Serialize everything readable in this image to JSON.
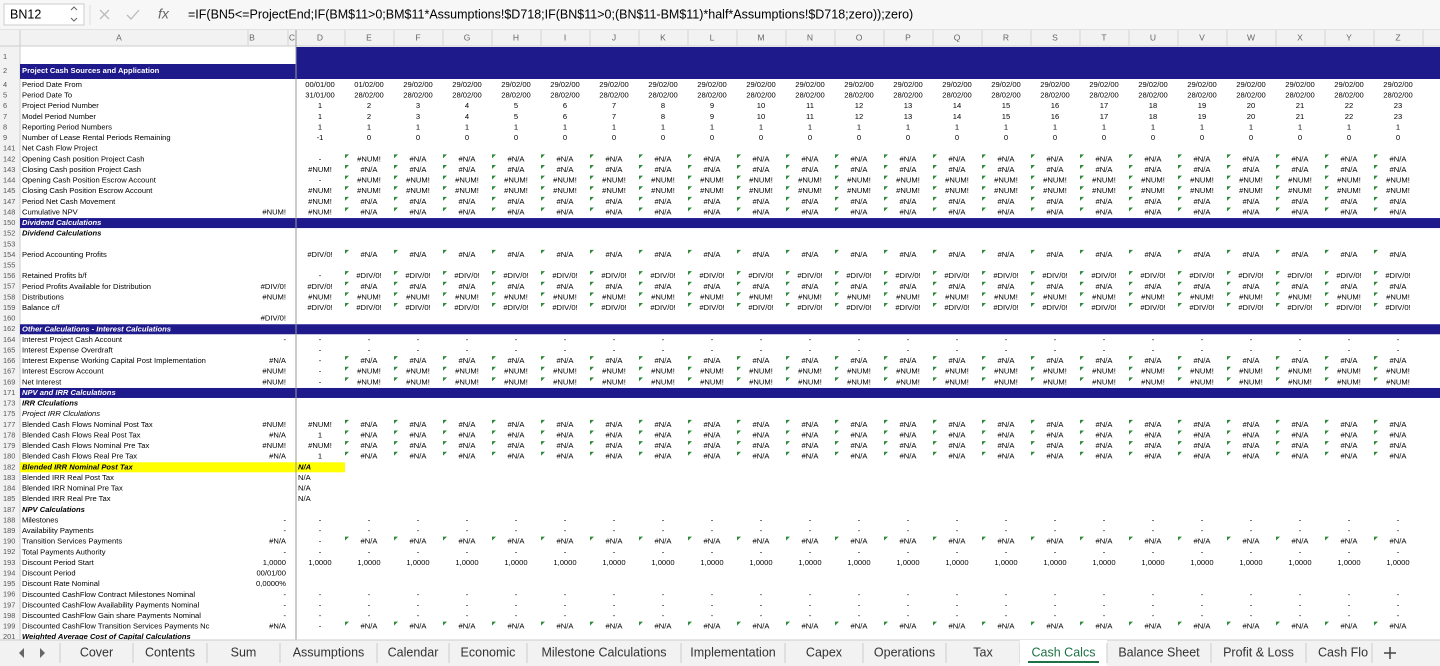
{
  "name_box": "BN12",
  "fx_label": "fx",
  "formula": "=IF(BN5<=ProjectEnd;IF(BM$11>0;BM$11*Assumptions!$D718;IF(BN$11>0;(BN$11-BM$11)*half*Assumptions!$D718;zero));zero)",
  "columns": [
    "A",
    "B",
    "C",
    "D",
    "E",
    "F",
    "G",
    "H",
    "I",
    "J",
    "K",
    "L",
    "M",
    "N",
    "O",
    "P",
    "Q",
    "R",
    "S",
    "T",
    "U",
    "V",
    "W",
    "X",
    "Y",
    "Z"
  ],
  "rows": [
    {
      "n": 1,
      "style": "banner"
    },
    {
      "n": 2,
      "style": "title",
      "label": "Project Cash Sources and Application"
    },
    {
      "n": 4,
      "label": "Period Date From",
      "cells": [
        "00/01/00",
        "01/02/00",
        "29/02/00",
        "29/02/00",
        "29/02/00",
        "29/02/00",
        "29/02/00",
        "29/02/00",
        "29/02/00",
        "29/02/00",
        "29/02/00",
        "29/02/00",
        "29/02/00",
        "29/02/00",
        "29/02/00",
        "29/02/00",
        "29/02/00",
        "29/02/00",
        "29/02/00",
        "29/02/00",
        "29/02/00",
        "29/02/00",
        "29/02/00"
      ]
    },
    {
      "n": 5,
      "label": "Period Date To",
      "cells": [
        "31/01/00",
        "28/02/00",
        "28/02/00",
        "28/02/00",
        "28/02/00",
        "28/02/00",
        "28/02/00",
        "28/02/00",
        "28/02/00",
        "28/02/00",
        "28/02/00",
        "28/02/00",
        "28/02/00",
        "28/02/00",
        "28/02/00",
        "28/02/00",
        "28/02/00",
        "28/02/00",
        "28/02/00",
        "28/02/00",
        "28/02/00",
        "28/02/00",
        "28/02/00"
      ]
    },
    {
      "n": 6,
      "label": "Project Period Number",
      "cells": [
        1,
        2,
        3,
        4,
        5,
        6,
        7,
        8,
        9,
        10,
        11,
        12,
        13,
        14,
        15,
        16,
        17,
        18,
        19,
        20,
        21,
        22,
        23
      ]
    },
    {
      "n": 7,
      "label": "Model Period Number",
      "cells": [
        1,
        2,
        3,
        4,
        5,
        6,
        7,
        8,
        9,
        10,
        11,
        12,
        13,
        14,
        15,
        16,
        17,
        18,
        19,
        20,
        21,
        22,
        23
      ]
    },
    {
      "n": 8,
      "label": "Reporting Period Numbers",
      "cells": [
        1,
        1,
        1,
        1,
        1,
        1,
        1,
        1,
        1,
        1,
        1,
        1,
        1,
        1,
        1,
        1,
        1,
        1,
        1,
        1,
        1,
        1,
        1
      ]
    },
    {
      "n": 9,
      "label": "Number of Lease Rental Periods Remaining",
      "cells": [
        -1,
        0,
        0,
        0,
        0,
        0,
        0,
        0,
        0,
        0,
        0,
        0,
        0,
        0,
        0,
        0,
        0,
        0,
        0,
        0,
        0,
        0,
        0
      ]
    },
    {
      "n": 141,
      "label": "Net Cash Flow Project"
    },
    {
      "n": 142,
      "label": "Opening Cash position Project Cash",
      "cells": [
        "-",
        "#NUM!",
        "#N/A",
        "#N/A",
        "#N/A",
        "#N/A",
        "#N/A",
        "#N/A",
        "#N/A",
        "#N/A",
        "#N/A",
        "#N/A",
        "#N/A",
        "#N/A",
        "#N/A",
        "#N/A",
        "#N/A",
        "#N/A",
        "#N/A",
        "#N/A",
        "#N/A",
        "#N/A",
        "#N/A"
      ]
    },
    {
      "n": 143,
      "label": "Closing Cash position Project Cash",
      "cells": [
        "#NUM!",
        "#N/A",
        "#N/A",
        "#N/A",
        "#N/A",
        "#N/A",
        "#N/A",
        "#N/A",
        "#N/A",
        "#N/A",
        "#N/A",
        "#N/A",
        "#N/A",
        "#N/A",
        "#N/A",
        "#N/A",
        "#N/A",
        "#N/A",
        "#N/A",
        "#N/A",
        "#N/A",
        "#N/A",
        "#N/A"
      ]
    },
    {
      "n": 144,
      "label": "Opening Cash Position Escrow Account",
      "cells": [
        "-",
        "#NUM!",
        "#NUM!",
        "#NUM!",
        "#NUM!",
        "#NUM!",
        "#NUM!",
        "#NUM!",
        "#NUM!",
        "#NUM!",
        "#NUM!",
        "#NUM!",
        "#NUM!",
        "#NUM!",
        "#NUM!",
        "#NUM!",
        "#NUM!",
        "#NUM!",
        "#NUM!",
        "#NUM!",
        "#NUM!",
        "#NUM!",
        "#NUM!"
      ]
    },
    {
      "n": 145,
      "label": "Closing Cash Position Escrow Account",
      "cells": [
        "#NUM!",
        "#NUM!",
        "#NUM!",
        "#NUM!",
        "#NUM!",
        "#NUM!",
        "#NUM!",
        "#NUM!",
        "#NUM!",
        "#NUM!",
        "#NUM!",
        "#NUM!",
        "#NUM!",
        "#NUM!",
        "#NUM!",
        "#NUM!",
        "#NUM!",
        "#NUM!",
        "#NUM!",
        "#NUM!",
        "#NUM!",
        "#NUM!",
        "#NUM!"
      ]
    },
    {
      "n": 147,
      "label": "Period Net Cash Movement",
      "cells": [
        "#NUM!",
        "#N/A",
        "#N/A",
        "#N/A",
        "#N/A",
        "#N/A",
        "#N/A",
        "#N/A",
        "#N/A",
        "#N/A",
        "#N/A",
        "#N/A",
        "#N/A",
        "#N/A",
        "#N/A",
        "#N/A",
        "#N/A",
        "#N/A",
        "#N/A",
        "#N/A",
        "#N/A",
        "#N/A",
        "#N/A"
      ]
    },
    {
      "n": 148,
      "label": "Cumulative NPV",
      "b": "#NUM!",
      "cells": [
        "#NUM!",
        "#N/A",
        "#N/A",
        "#N/A",
        "#N/A",
        "#N/A",
        "#N/A",
        "#N/A",
        "#N/A",
        "#N/A",
        "#N/A",
        "#N/A",
        "#N/A",
        "#N/A",
        "#N/A",
        "#N/A",
        "#N/A",
        "#N/A",
        "#N/A",
        "#N/A",
        "#N/A",
        "#N/A",
        "#N/A"
      ]
    },
    {
      "n": 150,
      "style": "section",
      "label": "Dividend Calculations"
    },
    {
      "n": 152,
      "style": "heading",
      "label": "Dividend Calculations"
    },
    {
      "n": 153
    },
    {
      "n": 154,
      "label": "Period Accounting Profits",
      "cells": [
        "#DIV/0!",
        "#N/A",
        "#N/A",
        "#N/A",
        "#N/A",
        "#N/A",
        "#N/A",
        "#N/A",
        "#N/A",
        "#N/A",
        "#N/A",
        "#N/A",
        "#N/A",
        "#N/A",
        "#N/A",
        "#N/A",
        "#N/A",
        "#N/A",
        "#N/A",
        "#N/A",
        "#N/A",
        "#N/A",
        "#N/A"
      ]
    },
    {
      "n": 155
    },
    {
      "n": 156,
      "label": "Retained Profits b/f",
      "cells": [
        "-",
        "#DIV/0!",
        "#DIV/0!",
        "#DIV/0!",
        "#DIV/0!",
        "#DIV/0!",
        "#DIV/0!",
        "#DIV/0!",
        "#DIV/0!",
        "#DIV/0!",
        "#DIV/0!",
        "#DIV/0!",
        "#DIV/0!",
        "#DIV/0!",
        "#DIV/0!",
        "#DIV/0!",
        "#DIV/0!",
        "#DIV/0!",
        "#DIV/0!",
        "#DIV/0!",
        "#DIV/0!",
        "#DIV/0!",
        "#DIV/0!"
      ]
    },
    {
      "n": 157,
      "label": "Period Profits Available for Distribution",
      "b": "#DIV/0!",
      "cells": [
        "#DIV/0!",
        "#N/A",
        "#N/A",
        "#N/A",
        "#N/A",
        "#N/A",
        "#N/A",
        "#N/A",
        "#N/A",
        "#N/A",
        "#N/A",
        "#N/A",
        "#N/A",
        "#N/A",
        "#N/A",
        "#N/A",
        "#N/A",
        "#N/A",
        "#N/A",
        "#N/A",
        "#N/A",
        "#N/A",
        "#N/A"
      ]
    },
    {
      "n": 158,
      "label": "Distributions",
      "b": "#NUM!",
      "cells": [
        "#NUM!",
        "#NUM!",
        "#NUM!",
        "#NUM!",
        "#NUM!",
        "#NUM!",
        "#NUM!",
        "#NUM!",
        "#NUM!",
        "#NUM!",
        "#NUM!",
        "#NUM!",
        "#NUM!",
        "#NUM!",
        "#NUM!",
        "#NUM!",
        "#NUM!",
        "#NUM!",
        "#NUM!",
        "#NUM!",
        "#NUM!",
        "#NUM!",
        "#NUM!"
      ]
    },
    {
      "n": 159,
      "label": "Balance c/f",
      "cells": [
        "#DIV/0!",
        "#DIV/0!",
        "#DIV/0!",
        "#DIV/0!",
        "#DIV/0!",
        "#DIV/0!",
        "#DIV/0!",
        "#DIV/0!",
        "#DIV/0!",
        "#DIV/0!",
        "#DIV/0!",
        "#DIV/0!",
        "#DIV/0!",
        "#DIV/0!",
        "#DIV/0!",
        "#DIV/0!",
        "#DIV/0!",
        "#DIV/0!",
        "#DIV/0!",
        "#DIV/0!",
        "#DIV/0!",
        "#DIV/0!",
        "#DIV/0!"
      ]
    },
    {
      "n": 160,
      "b": "#DIV/0!"
    },
    {
      "n": 162,
      "style": "section",
      "label": "Other Calculations - Interest Calculations"
    },
    {
      "n": 164,
      "label": "Interest Project Cash Account",
      "b": "-",
      "cells": [
        "-",
        "-",
        "-",
        "-",
        "-",
        "-",
        "-",
        "-",
        "-",
        "-",
        "-",
        "-",
        "-",
        "-",
        "-",
        "-",
        "-",
        "-",
        "-",
        "-",
        "-",
        "-",
        "-"
      ]
    },
    {
      "n": 165,
      "label": "Interest Expense Overdraft",
      "cells": [
        "-",
        "-",
        "-",
        "-",
        "-",
        "-",
        "-",
        "-",
        "-",
        "-",
        "-",
        "-",
        "-",
        "-",
        "-",
        "-",
        "-",
        "-",
        "-",
        "-",
        "-",
        "-",
        "-"
      ]
    },
    {
      "n": 166,
      "label": "Interest Expense Working Capital Post Implementation",
      "b": "#N/A",
      "cells": [
        "-",
        "#N/A",
        "#N/A",
        "#N/A",
        "#N/A",
        "#N/A",
        "#N/A",
        "#N/A",
        "#N/A",
        "#N/A",
        "#N/A",
        "#N/A",
        "#N/A",
        "#N/A",
        "#N/A",
        "#N/A",
        "#N/A",
        "#N/A",
        "#N/A",
        "#N/A",
        "#N/A",
        "#N/A",
        "#N/A"
      ]
    },
    {
      "n": 167,
      "label": "Interest Escrow Account",
      "b": "#NUM!",
      "cells": [
        "-",
        "#NUM!",
        "#NUM!",
        "#NUM!",
        "#NUM!",
        "#NUM!",
        "#NUM!",
        "#NUM!",
        "#NUM!",
        "#NUM!",
        "#NUM!",
        "#NUM!",
        "#NUM!",
        "#NUM!",
        "#NUM!",
        "#NUM!",
        "#NUM!",
        "#NUM!",
        "#NUM!",
        "#NUM!",
        "#NUM!",
        "#NUM!",
        "#NUM!"
      ]
    },
    {
      "n": 169,
      "label": "Net Interest",
      "b": "#NUM!",
      "cells": [
        "-",
        "#NUM!",
        "#NUM!",
        "#NUM!",
        "#NUM!",
        "#NUM!",
        "#NUM!",
        "#NUM!",
        "#NUM!",
        "#NUM!",
        "#NUM!",
        "#NUM!",
        "#NUM!",
        "#NUM!",
        "#NUM!",
        "#NUM!",
        "#NUM!",
        "#NUM!",
        "#NUM!",
        "#NUM!",
        "#NUM!",
        "#NUM!",
        "#NUM!"
      ]
    },
    {
      "n": 171,
      "style": "section",
      "label": "NPV and IRR Calculations"
    },
    {
      "n": 173,
      "style": "heading",
      "label": "IRR Clculations"
    },
    {
      "n": 175,
      "style": "italic",
      "label": "Project IRR Clculations"
    },
    {
      "n": 177,
      "label": "Blended Cash Flows Nominal Post Tax",
      "b": "#NUM!",
      "cells": [
        "#NUM!",
        "#N/A",
        "#N/A",
        "#N/A",
        "#N/A",
        "#N/A",
        "#N/A",
        "#N/A",
        "#N/A",
        "#N/A",
        "#N/A",
        "#N/A",
        "#N/A",
        "#N/A",
        "#N/A",
        "#N/A",
        "#N/A",
        "#N/A",
        "#N/A",
        "#N/A",
        "#N/A",
        "#N/A",
        "#N/A"
      ]
    },
    {
      "n": 178,
      "label": "Blended Cash Flows Real Post Tax",
      "b": "#N/A",
      "cells": [
        1,
        "#N/A",
        "#N/A",
        "#N/A",
        "#N/A",
        "#N/A",
        "#N/A",
        "#N/A",
        "#N/A",
        "#N/A",
        "#N/A",
        "#N/A",
        "#N/A",
        "#N/A",
        "#N/A",
        "#N/A",
        "#N/A",
        "#N/A",
        "#N/A",
        "#N/A",
        "#N/A",
        "#N/A",
        "#N/A"
      ]
    },
    {
      "n": 179,
      "label": "Blended Cash Flows Nominal Pre Tax",
      "b": "#NUM!",
      "cells": [
        "#NUM!",
        "#N/A",
        "#N/A",
        "#N/A",
        "#N/A",
        "#N/A",
        "#N/A",
        "#N/A",
        "#N/A",
        "#N/A",
        "#N/A",
        "#N/A",
        "#N/A",
        "#N/A",
        "#N/A",
        "#N/A",
        "#N/A",
        "#N/A",
        "#N/A",
        "#N/A",
        "#N/A",
        "#N/A",
        "#N/A"
      ]
    },
    {
      "n": 180,
      "label": "Blended Cash Flows Real Pre Tax",
      "b": "#N/A",
      "cells": [
        1,
        "#N/A",
        "#N/A",
        "#N/A",
        "#N/A",
        "#N/A",
        "#N/A",
        "#N/A",
        "#N/A",
        "#N/A",
        "#N/A",
        "#N/A",
        "#N/A",
        "#N/A",
        "#N/A",
        "#N/A",
        "#N/A",
        "#N/A",
        "#N/A",
        "#N/A",
        "#N/A",
        "#N/A",
        "#N/A"
      ]
    },
    {
      "n": 182,
      "style": "highlight",
      "label": "Blended IRR Nominal Post Tax",
      "cells": [
        "N/A"
      ]
    },
    {
      "n": 183,
      "label": "Blended IRR Real Post Tax",
      "cells": [
        "N/A"
      ]
    },
    {
      "n": 184,
      "label": "Blended IRR Nominal Pre Tax",
      "cells": [
        "N/A"
      ]
    },
    {
      "n": 185,
      "label": "Blended IRR Real Pre Tax",
      "cells": [
        "N/A"
      ]
    },
    {
      "n": 187,
      "style": "heading",
      "label": "NPV Calculations"
    },
    {
      "n": 188,
      "label": "Milestones",
      "b": "-",
      "cells": [
        "-",
        "-",
        "-",
        "-",
        "-",
        "-",
        "-",
        "-",
        "-",
        "-",
        "-",
        "-",
        "-",
        "-",
        "-",
        "-",
        "-",
        "-",
        "-",
        "-",
        "-",
        "-",
        "-"
      ]
    },
    {
      "n": 189,
      "label": "Availability Payments",
      "b": "-",
      "cells": [
        "-",
        "-",
        "-",
        "-",
        "-",
        "-",
        "-",
        "-",
        "-",
        "-",
        "-",
        "-",
        "-",
        "-",
        "-",
        "-",
        "-",
        "-",
        "-",
        "-",
        "-",
        "-",
        "-"
      ]
    },
    {
      "n": 190,
      "label": "Transition Services Payments",
      "b": "#N/A",
      "cells": [
        "-",
        "#N/A",
        "#N/A",
        "#N/A",
        "#N/A",
        "#N/A",
        "#N/A",
        "#N/A",
        "#N/A",
        "#N/A",
        "#N/A",
        "#N/A",
        "#N/A",
        "#N/A",
        "#N/A",
        "#N/A",
        "#N/A",
        "#N/A",
        "#N/A",
        "#N/A",
        "#N/A",
        "#N/A",
        "#N/A"
      ]
    },
    {
      "n": 192,
      "label": "Total Payments Authority",
      "b": "-",
      "cells": [
        "-",
        "-",
        "-",
        "-",
        "-",
        "-",
        "-",
        "-",
        "-",
        "-",
        "-",
        "-",
        "-",
        "-",
        "-",
        "-",
        "-",
        "-",
        "-",
        "-",
        "-",
        "-",
        "-"
      ]
    },
    {
      "n": 193,
      "label": "Discount Period Start",
      "b": "1,0000",
      "cells": [
        "1,0000",
        "1,0000",
        "1,0000",
        "1,0000",
        "1,0000",
        "1,0000",
        "1,0000",
        "1,0000",
        "1,0000",
        "1,0000",
        "1,0000",
        "1,0000",
        "1,0000",
        "1,0000",
        "1,0000",
        "1,0000",
        "1,0000",
        "1,0000",
        "1,0000",
        "1,0000",
        "1,0000",
        "1,0000",
        "1,0000"
      ]
    },
    {
      "n": 194,
      "label": "Discount Period",
      "b": "00/01/00"
    },
    {
      "n": 195,
      "label": "Discount Rate Nominal",
      "b": "0,0000%"
    },
    {
      "n": 196,
      "label": "Discounted CashFlow Contract Milestones Nominal",
      "b": "-",
      "cells": [
        "-",
        "-",
        "-",
        "-",
        "-",
        "-",
        "-",
        "-",
        "-",
        "-",
        "-",
        "-",
        "-",
        "-",
        "-",
        "-",
        "-",
        "-",
        "-",
        "-",
        "-",
        "-",
        "-"
      ]
    },
    {
      "n": 197,
      "label": "Discounted CashFlow Availability Payments Nominal",
      "b": "-",
      "cells": [
        "-",
        "-",
        "-",
        "-",
        "-",
        "-",
        "-",
        "-",
        "-",
        "-",
        "-",
        "-",
        "-",
        "-",
        "-",
        "-",
        "-",
        "-",
        "-",
        "-",
        "-",
        "-",
        "-"
      ]
    },
    {
      "n": 198,
      "label": "Discounted CashFlow Gain share Payments Nominal",
      "b": "-",
      "cells": [
        "-",
        "-",
        "-",
        "-",
        "-",
        "-",
        "-",
        "-",
        "-",
        "-",
        "-",
        "-",
        "-",
        "-",
        "-",
        "-",
        "-",
        "-",
        "-",
        "-",
        "-",
        "-",
        "-"
      ]
    },
    {
      "n": 199,
      "label": "Discounted CashFlow Transition Services Payments Nc",
      "b": "#N/A",
      "cells": [
        "-",
        "#N/A",
        "#N/A",
        "#N/A",
        "#N/A",
        "#N/A",
        "#N/A",
        "#N/A",
        "#N/A",
        "#N/A",
        "#N/A",
        "#N/A",
        "#N/A",
        "#N/A",
        "#N/A",
        "#N/A",
        "#N/A",
        "#N/A",
        "#N/A",
        "#N/A",
        "#N/A",
        "#N/A",
        "#N/A"
      ]
    },
    {
      "n": 201,
      "style": "heading",
      "label": "Weighted Average Cost of Capital Calculations"
    }
  ],
  "tabs": [
    "Cover",
    "Contents",
    "Sum",
    "Assumptions",
    "Calendar",
    "Economic",
    "Milestone Calculations",
    "Implementation",
    "Capex",
    "Operations",
    "Tax",
    "Cash Calcs",
    "Balance Sheet",
    "Profit & Loss",
    "Cash Flo"
  ],
  "active_tab": "Cash Calcs"
}
